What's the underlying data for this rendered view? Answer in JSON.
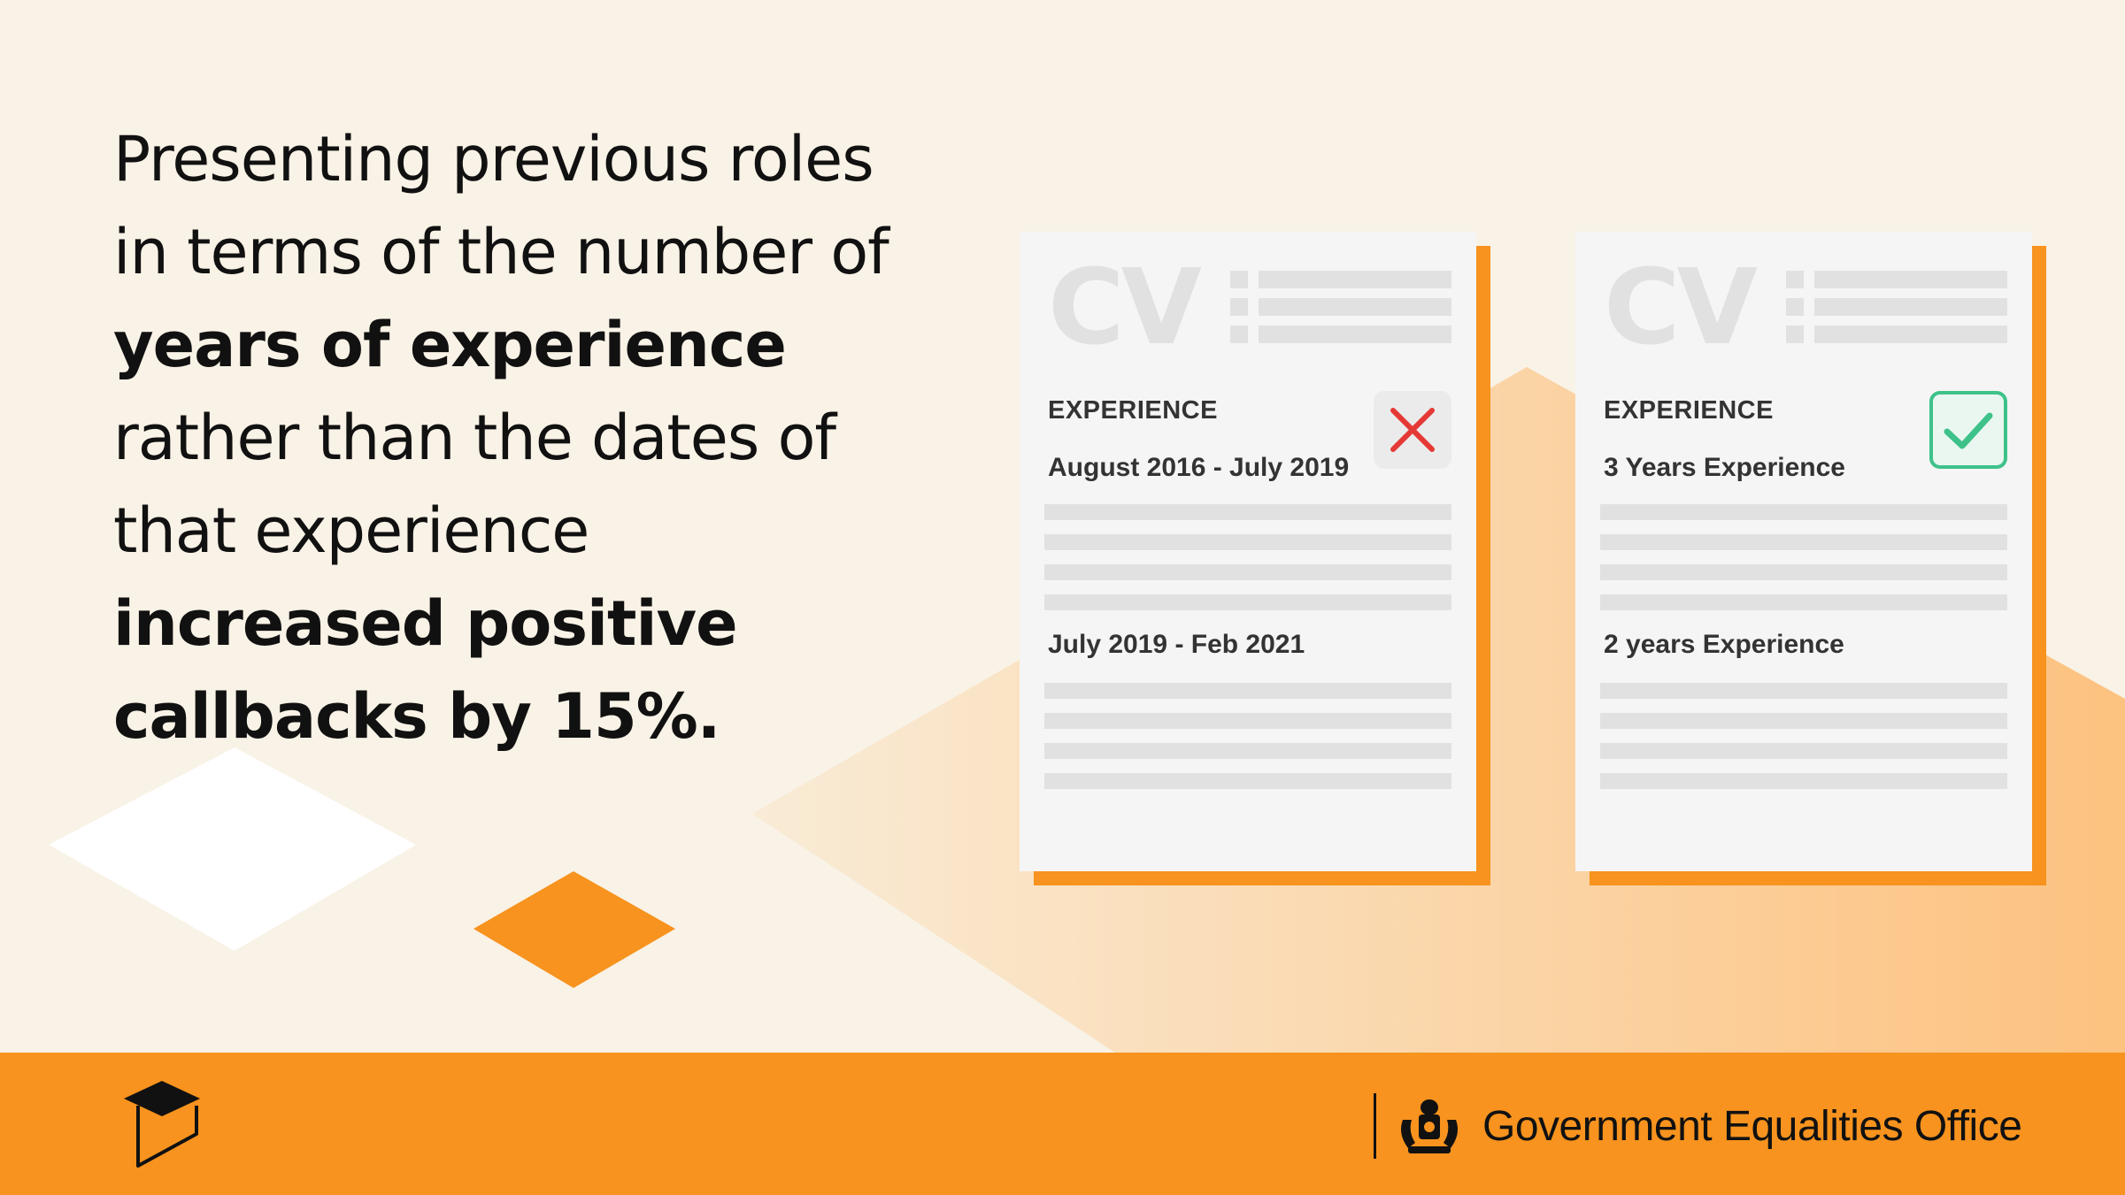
{
  "headline": {
    "line1": "Presenting previous roles",
    "line2": "in terms of the number of",
    "line3": "years of experience",
    "line4": "rather than the dates of",
    "line5": "that experience",
    "line6": "increased positive",
    "line7": "callbacks by 15%."
  },
  "cv_left": {
    "mark": "CV",
    "section_label": "EXPERIENCE",
    "entry1": "August 2016 - July 2019",
    "entry2": "July 2019 - Feb 2021",
    "status_icon": "cross-icon"
  },
  "cv_right": {
    "mark": "CV",
    "section_label": "EXPERIENCE",
    "entry1": "3 Years Experience",
    "entry2": "2 years Experience",
    "status_icon": "check-icon"
  },
  "footer": {
    "organisation": "Government Equalities Office",
    "logo_icon": "behavioural-insights-logo",
    "crest_icon": "royal-coat-of-arms"
  },
  "colors": {
    "background": "#f9f2e6",
    "accent_orange": "#f7931e",
    "cross_red": "#e53935",
    "check_green": "#3ec28a"
  }
}
